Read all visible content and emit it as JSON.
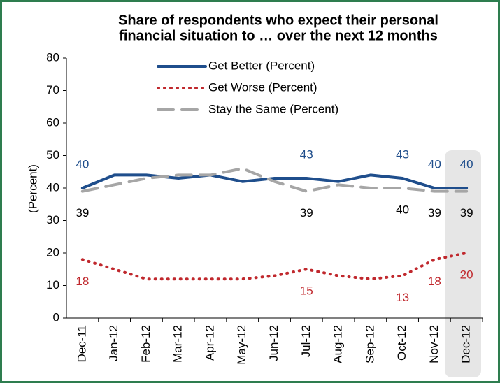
{
  "chart_data": {
    "type": "line",
    "title": "Share of respondents who expect their personal",
    "subtitle": "financial situation to … over the next 12 months",
    "y_label": "(Percent)",
    "categories": [
      "Dec-11",
      "Jan-12",
      "Feb-12",
      "Mar-12",
      "Apr-12",
      "May-12",
      "Jun-12",
      "Jul-12",
      "Aug-12",
      "Sep-12",
      "Oct-12",
      "Nov-12",
      "Dec-12"
    ],
    "series": [
      {
        "name": "Get Better (Percent)",
        "color": "#1f4e8c",
        "style": "solid",
        "values": [
          40,
          44,
          44,
          43,
          44,
          42,
          43,
          43,
          42,
          44,
          43,
          40,
          40
        ]
      },
      {
        "name": "Get Worse (Percent)",
        "color": "#c0282d",
        "style": "dotted",
        "values": [
          18,
          15,
          12,
          12,
          12,
          12,
          13,
          15,
          13,
          12,
          13,
          18,
          20
        ]
      },
      {
        "name": "Stay the Same (Percent)",
        "color": "#a6a6a6",
        "style": "dashed",
        "values": [
          39,
          41,
          43,
          44,
          44,
          46,
          42,
          39,
          41,
          40,
          40,
          39,
          39
        ]
      }
    ],
    "ylim": [
      0,
      80
    ],
    "yticks": [
      0,
      10,
      20,
      30,
      40,
      50,
      60,
      70,
      80
    ],
    "grid": false
  }
}
